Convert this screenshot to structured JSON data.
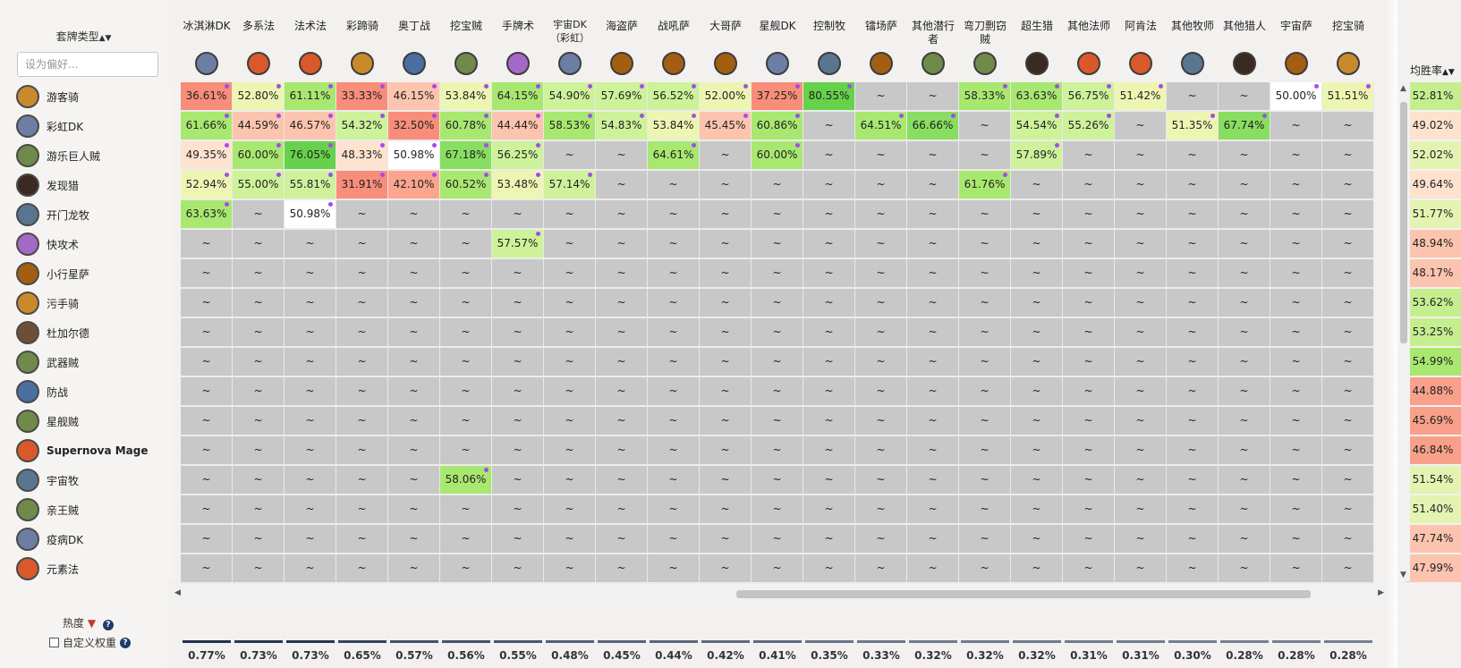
{
  "sidebar": {
    "deck_type_label": "套牌类型",
    "sort_icon": "sort-up-down-icon",
    "search_placeholder": "设为偏好...",
    "heat_label": "热度",
    "custom_weight_label": "自定义权重",
    "rows": [
      {
        "label": "游客骑",
        "icon": "paladin-class-icon"
      },
      {
        "label": "彩虹DK",
        "icon": "death-knight-class-icon"
      },
      {
        "label": "游乐巨人贼",
        "icon": "rogue-class-icon"
      },
      {
        "label": "发现猎",
        "icon": "hunter-class-icon"
      },
      {
        "label": "开门龙牧",
        "icon": "priest-class-icon"
      },
      {
        "label": "快攻术",
        "icon": "warlock-class-icon"
      },
      {
        "label": "小行星萨",
        "icon": "shaman-class-icon"
      },
      {
        "label": "污手骑",
        "icon": "paladin-class-icon"
      },
      {
        "label": "杜加尔德",
        "icon": "druid-class-icon"
      },
      {
        "label": "武器贼",
        "icon": "rogue-class-icon"
      },
      {
        "label": "防战",
        "icon": "warrior-class-icon"
      },
      {
        "label": "星舰贼",
        "icon": "rogue-class-icon"
      },
      {
        "label": "Supernova Mage",
        "icon": "mage-class-icon"
      },
      {
        "label": "宇宙牧",
        "icon": "priest-class-icon"
      },
      {
        "label": "亲王贼",
        "icon": "rogue-class-icon"
      },
      {
        "label": "疫病DK",
        "icon": "death-knight-class-icon"
      },
      {
        "label": "元素法",
        "icon": "mage-class-icon"
      }
    ]
  },
  "columns": [
    {
      "label": "冰淇淋DK",
      "icon": "death-knight-class-icon",
      "popularity": "0.77%"
    },
    {
      "label": "多系法",
      "icon": "mage-class-icon",
      "popularity": "0.73%"
    },
    {
      "label": "法术法",
      "icon": "mage-class-icon",
      "popularity": "0.73%"
    },
    {
      "label": "彩蹄骑",
      "icon": "paladin-class-icon",
      "popularity": "0.65%"
    },
    {
      "label": "奥丁战",
      "icon": "warrior-class-icon",
      "popularity": "0.57%"
    },
    {
      "label": "挖宝贼",
      "icon": "rogue-class-icon",
      "popularity": "0.56%"
    },
    {
      "label": "手牌术",
      "icon": "warlock-class-icon",
      "popularity": "0.55%"
    },
    {
      "label": "宇宙DK（彩虹）",
      "icon": "death-knight-class-icon",
      "popularity": "0.48%"
    },
    {
      "label": "海盗萨",
      "icon": "shaman-class-icon",
      "popularity": "0.45%"
    },
    {
      "label": "战吼萨",
      "icon": "shaman-class-icon",
      "popularity": "0.44%"
    },
    {
      "label": "大哥萨",
      "icon": "shaman-class-icon",
      "popularity": "0.42%"
    },
    {
      "label": "星舰DK",
      "icon": "death-knight-class-icon",
      "popularity": "0.41%"
    },
    {
      "label": "控制牧",
      "icon": "priest-class-icon",
      "popularity": "0.35%"
    },
    {
      "label": "镭场萨",
      "icon": "shaman-class-icon",
      "popularity": "0.33%"
    },
    {
      "label": "其他潜行者",
      "icon": "rogue-class-icon",
      "popularity": "0.32%"
    },
    {
      "label": "弯刀剽窃贼",
      "icon": "rogue-class-icon",
      "popularity": "0.32%"
    },
    {
      "label": "超生猎",
      "icon": "hunter-class-icon",
      "popularity": "0.32%"
    },
    {
      "label": "其他法师",
      "icon": "mage-class-icon",
      "popularity": "0.31%"
    },
    {
      "label": "阿肯法",
      "icon": "mage-class-icon",
      "popularity": "0.31%"
    },
    {
      "label": "其他牧师",
      "icon": "priest-class-icon",
      "popularity": "0.30%"
    },
    {
      "label": "其他猎人",
      "icon": "hunter-class-icon",
      "popularity": "0.28%"
    },
    {
      "label": "宇宙萨",
      "icon": "shaman-class-icon",
      "popularity": "0.28%"
    },
    {
      "label": "挖宝骑",
      "icon": "paladin-class-icon",
      "popularity": "0.28%"
    }
  ],
  "avg_label": "均胜率",
  "avg_values": [
    "52.81%",
    "49.02%",
    "52.02%",
    "49.64%",
    "51.77%",
    "48.94%",
    "48.17%",
    "53.62%",
    "53.25%",
    "54.99%",
    "44.88%",
    "45.69%",
    "46.84%",
    "51.54%",
    "51.40%",
    "47.74%",
    "47.99%"
  ],
  "matrix": [
    [
      "36.61%",
      "52.80%",
      "61.11%",
      "33.33%",
      "46.15%",
      "53.84%",
      "64.15%",
      "54.90%",
      "57.69%",
      "56.52%",
      "52.00%",
      "37.25%",
      "80.55%",
      "~",
      "~",
      "58.33%",
      "63.63%",
      "56.75%",
      "51.42%",
      "~",
      "~",
      "50.00%",
      "51.51%"
    ],
    [
      "61.66%",
      "44.59%",
      "46.57%",
      "54.32%",
      "32.50%",
      "60.78%",
      "44.44%",
      "58.53%",
      "54.83%",
      "53.84%",
      "45.45%",
      "60.86%",
      "~",
      "64.51%",
      "66.66%",
      "~",
      "54.54%",
      "55.26%",
      "~",
      "51.35%",
      "67.74%",
      "~",
      "~"
    ],
    [
      "49.35%",
      "60.00%",
      "76.05%",
      "48.33%",
      "50.98%",
      "67.18%",
      "56.25%",
      "~",
      "~",
      "64.61%",
      "~",
      "60.00%",
      "~",
      "~",
      "~",
      "~",
      "57.89%",
      "~",
      "~",
      "~",
      "~",
      "~",
      "~"
    ],
    [
      "52.94%",
      "55.00%",
      "55.81%",
      "31.91%",
      "42.10%",
      "60.52%",
      "53.48%",
      "57.14%",
      "~",
      "~",
      "~",
      "~",
      "~",
      "~",
      "~",
      "61.76%",
      "~",
      "~",
      "~",
      "~",
      "~",
      "~",
      "~"
    ],
    [
      "63.63%",
      "~",
      "50.98%",
      "~",
      "~",
      "~",
      "~",
      "~",
      "~",
      "~",
      "~",
      "~",
      "~",
      "~",
      "~",
      "~",
      "~",
      "~",
      "~",
      "~",
      "~",
      "~",
      "~"
    ],
    [
      "~",
      "~",
      "~",
      "~",
      "~",
      "~",
      "57.57%",
      "~",
      "~",
      "~",
      "~",
      "~",
      "~",
      "~",
      "~",
      "~",
      "~",
      "~",
      "~",
      "~",
      "~",
      "~",
      "~"
    ],
    [
      "~",
      "~",
      "~",
      "~",
      "~",
      "~",
      "~",
      "~",
      "~",
      "~",
      "~",
      "~",
      "~",
      "~",
      "~",
      "~",
      "~",
      "~",
      "~",
      "~",
      "~",
      "~",
      "~"
    ],
    [
      "~",
      "~",
      "~",
      "~",
      "~",
      "~",
      "~",
      "~",
      "~",
      "~",
      "~",
      "~",
      "~",
      "~",
      "~",
      "~",
      "~",
      "~",
      "~",
      "~",
      "~",
      "~",
      "~"
    ],
    [
      "~",
      "~",
      "~",
      "~",
      "~",
      "~",
      "~",
      "~",
      "~",
      "~",
      "~",
      "~",
      "~",
      "~",
      "~",
      "~",
      "~",
      "~",
      "~",
      "~",
      "~",
      "~",
      "~"
    ],
    [
      "~",
      "~",
      "~",
      "~",
      "~",
      "~",
      "~",
      "~",
      "~",
      "~",
      "~",
      "~",
      "~",
      "~",
      "~",
      "~",
      "~",
      "~",
      "~",
      "~",
      "~",
      "~",
      "~"
    ],
    [
      "~",
      "~",
      "~",
      "~",
      "~",
      "~",
      "~",
      "~",
      "~",
      "~",
      "~",
      "~",
      "~",
      "~",
      "~",
      "~",
      "~",
      "~",
      "~",
      "~",
      "~",
      "~",
      "~"
    ],
    [
      "~",
      "~",
      "~",
      "~",
      "~",
      "~",
      "~",
      "~",
      "~",
      "~",
      "~",
      "~",
      "~",
      "~",
      "~",
      "~",
      "~",
      "~",
      "~",
      "~",
      "~",
      "~",
      "~"
    ],
    [
      "~",
      "~",
      "~",
      "~",
      "~",
      "~",
      "~",
      "~",
      "~",
      "~",
      "~",
      "~",
      "~",
      "~",
      "~",
      "~",
      "~",
      "~",
      "~",
      "~",
      "~",
      "~",
      "~"
    ],
    [
      "~",
      "~",
      "~",
      "~",
      "~",
      "58.06%",
      "~",
      "~",
      "~",
      "~",
      "~",
      "~",
      "~",
      "~",
      "~",
      "~",
      "~",
      "~",
      "~",
      "~",
      "~",
      "~",
      "~"
    ],
    [
      "~",
      "~",
      "~",
      "~",
      "~",
      "~",
      "~",
      "~",
      "~",
      "~",
      "~",
      "~",
      "~",
      "~",
      "~",
      "~",
      "~",
      "~",
      "~",
      "~",
      "~",
      "~",
      "~"
    ],
    [
      "~",
      "~",
      "~",
      "~",
      "~",
      "~",
      "~",
      "~",
      "~",
      "~",
      "~",
      "~",
      "~",
      "~",
      "~",
      "~",
      "~",
      "~",
      "~",
      "~",
      "~",
      "~",
      "~"
    ],
    [
      "~",
      "~",
      "~",
      "~",
      "~",
      "~",
      "~",
      "~",
      "~",
      "~",
      "~",
      "~",
      "~",
      "~",
      "~",
      "~",
      "~",
      "~",
      "~",
      "~",
      "~",
      "~",
      "~"
    ]
  ],
  "colors": {
    "empty": "#c8c8c8",
    "purple_dot": "#a64be8",
    "bar": "#1f3051"
  }
}
